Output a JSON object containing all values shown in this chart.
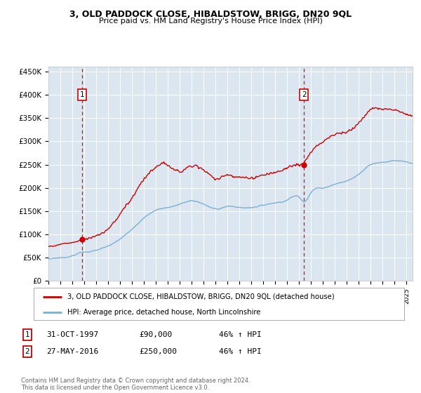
{
  "title": "3, OLD PADDOCK CLOSE, HIBALDSTOW, BRIGG, DN20 9QL",
  "subtitle": "Price paid vs. HM Land Registry's House Price Index (HPI)",
  "ylabel_ticks": [
    "£0",
    "£50K",
    "£100K",
    "£150K",
    "£200K",
    "£250K",
    "£300K",
    "£350K",
    "£400K",
    "£450K"
  ],
  "ytick_values": [
    0,
    50000,
    100000,
    150000,
    200000,
    250000,
    300000,
    350000,
    400000,
    450000
  ],
  "ylim": [
    0,
    460000
  ],
  "xlim_start": 1995.0,
  "xlim_end": 2025.5,
  "bg_color": "#dce6f1",
  "grid_color": "#ffffff",
  "red_color": "#cc0000",
  "blue_color": "#7bafd4",
  "sale1_x": 1997.833,
  "sale1_y": 90000,
  "sale2_x": 2016.41,
  "sale2_y": 250000,
  "legend_line1": "3, OLD PADDOCK CLOSE, HIBALDSTOW, BRIGG, DN20 9QL (detached house)",
  "legend_line2": "HPI: Average price, detached house, North Lincolnshire",
  "footnote": "Contains HM Land Registry data © Crown copyright and database right 2024.\nThis data is licensed under the Open Government Licence v3.0.",
  "table_rows": [
    [
      "1",
      "31-OCT-1997",
      "£90,000",
      "46% ↑ HPI"
    ],
    [
      "2",
      "27-MAY-2016",
      "£250,000",
      "46% ↑ HPI"
    ]
  ],
  "hpi_keypoints": [
    [
      1995.0,
      47000
    ],
    [
      1996.0,
      50000
    ],
    [
      1997.0,
      54000
    ],
    [
      1997.833,
      61800
    ],
    [
      1998.5,
      63000
    ],
    [
      1999.0,
      66000
    ],
    [
      2000.0,
      75000
    ],
    [
      2001.0,
      90000
    ],
    [
      2002.0,
      112000
    ],
    [
      2003.0,
      135000
    ],
    [
      2004.0,
      152000
    ],
    [
      2005.0,
      158000
    ],
    [
      2006.0,
      165000
    ],
    [
      2007.0,
      172000
    ],
    [
      2008.0,
      165000
    ],
    [
      2009.0,
      155000
    ],
    [
      2010.0,
      160000
    ],
    [
      2011.0,
      158000
    ],
    [
      2012.0,
      158000
    ],
    [
      2013.0,
      163000
    ],
    [
      2014.0,
      168000
    ],
    [
      2015.0,
      174000
    ],
    [
      2016.0,
      180000
    ],
    [
      2016.41,
      171000
    ],
    [
      2017.0,
      190000
    ],
    [
      2018.0,
      200000
    ],
    [
      2019.0,
      208000
    ],
    [
      2020.0,
      215000
    ],
    [
      2021.0,
      230000
    ],
    [
      2022.0,
      250000
    ],
    [
      2023.0,
      255000
    ],
    [
      2024.0,
      258000
    ],
    [
      2025.0,
      255000
    ],
    [
      2025.5,
      252000
    ]
  ],
  "red_keypoints_pre_sale1": [
    [
      1995.0,
      76000
    ],
    [
      1995.5,
      75000
    ],
    [
      1996.0,
      79000
    ],
    [
      1996.5,
      81000
    ],
    [
      1997.0,
      83000
    ],
    [
      1997.5,
      86000
    ],
    [
      1997.833,
      90000
    ]
  ],
  "red_keypoints_sale1_to_sale2": [
    [
      1997.833,
      90000
    ],
    [
      1998.5,
      93000
    ],
    [
      1999.0,
      97000
    ],
    [
      1999.5,
      103000
    ],
    [
      2000.0,
      112000
    ],
    [
      2000.5,
      127000
    ],
    [
      2001.0,
      143000
    ],
    [
      2001.5,
      162000
    ],
    [
      2002.0,
      178000
    ],
    [
      2002.5,
      200000
    ],
    [
      2003.0,
      218000
    ],
    [
      2003.5,
      233000
    ],
    [
      2004.0,
      243000
    ],
    [
      2004.5,
      252000
    ],
    [
      2005.0,
      248000
    ],
    [
      2005.5,
      240000
    ],
    [
      2006.0,
      235000
    ],
    [
      2006.5,
      242000
    ],
    [
      2007.0,
      248000
    ],
    [
      2007.5,
      245000
    ],
    [
      2008.0,
      238000
    ],
    [
      2008.5,
      228000
    ],
    [
      2009.0,
      220000
    ],
    [
      2009.5,
      223000
    ],
    [
      2010.0,
      228000
    ],
    [
      2010.5,
      224000
    ],
    [
      2011.0,
      222000
    ],
    [
      2011.5,
      222000
    ],
    [
      2012.0,
      221000
    ],
    [
      2012.5,
      224000
    ],
    [
      2013.0,
      228000
    ],
    [
      2013.5,
      230000
    ],
    [
      2014.0,
      234000
    ],
    [
      2014.5,
      238000
    ],
    [
      2015.0,
      243000
    ],
    [
      2015.5,
      247000
    ],
    [
      2016.0,
      250000
    ],
    [
      2016.41,
      250000
    ]
  ],
  "red_keypoints_post_sale2": [
    [
      2016.41,
      250000
    ],
    [
      2017.0,
      277000
    ],
    [
      2018.0,
      300000
    ],
    [
      2019.0,
      315000
    ],
    [
      2020.0,
      320000
    ],
    [
      2021.0,
      340000
    ],
    [
      2022.0,
      368000
    ],
    [
      2023.0,
      370000
    ],
    [
      2024.0,
      368000
    ],
    [
      2025.0,
      358000
    ],
    [
      2025.5,
      355000
    ]
  ]
}
